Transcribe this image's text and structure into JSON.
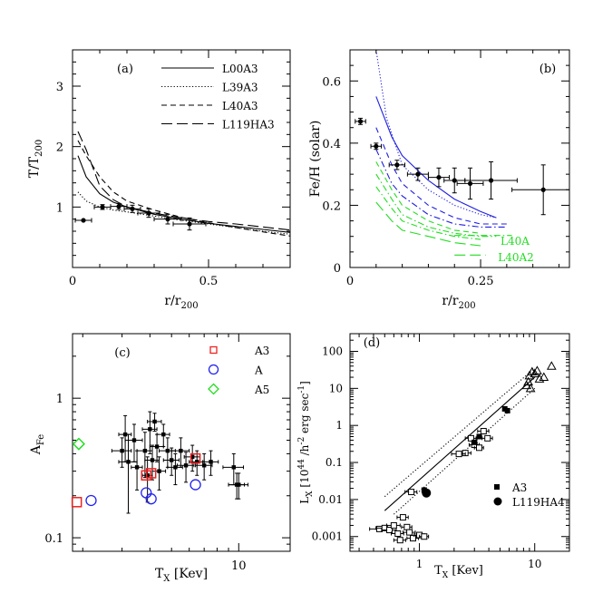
{
  "chart_data": [
    {
      "panel": "(a)",
      "type": "line",
      "xlabel": "r/r200",
      "ylabel": "T/T200",
      "xlim": [
        0,
        0.8
      ],
      "ylim": [
        0,
        3.6
      ],
      "xticks": [
        0,
        0.5
      ],
      "yticks": [
        1,
        2,
        3
      ],
      "legend_position": "top-right",
      "series": [
        {
          "name": "L00A3",
          "style": "solid",
          "x": [
            0.02,
            0.05,
            0.1,
            0.15,
            0.2,
            0.3,
            0.4,
            0.5,
            0.6,
            0.7,
            0.8
          ],
          "y": [
            1.85,
            1.5,
            1.22,
            1.08,
            1.0,
            0.88,
            0.8,
            0.73,
            0.68,
            0.63,
            0.58
          ]
        },
        {
          "name": "L39A3",
          "style": "dotted",
          "x": [
            0.02,
            0.05,
            0.1,
            0.15,
            0.2,
            0.3,
            0.4,
            0.5,
            0.6,
            0.7,
            0.8
          ],
          "y": [
            1.25,
            1.1,
            1.0,
            0.95,
            0.92,
            0.85,
            0.78,
            0.72,
            0.66,
            0.6,
            0.55
          ]
        },
        {
          "name": "L40A3",
          "style": "dashed",
          "x": [
            0.02,
            0.05,
            0.1,
            0.15,
            0.2,
            0.3,
            0.4,
            0.5,
            0.6,
            0.7,
            0.8
          ],
          "y": [
            2.1,
            1.85,
            1.5,
            1.25,
            1.1,
            0.95,
            0.83,
            0.74,
            0.66,
            0.59,
            0.52
          ]
        },
        {
          "name": "L119HA3",
          "style": "longdash",
          "x": [
            0.02,
            0.05,
            0.1,
            0.15,
            0.2,
            0.3,
            0.4,
            0.5,
            0.6,
            0.7,
            0.8
          ],
          "y": [
            2.25,
            1.95,
            1.35,
            1.12,
            1.0,
            0.9,
            0.82,
            0.76,
            0.72,
            0.67,
            0.62
          ]
        },
        {
          "name": "",
          "style": "points",
          "x": [
            0.04,
            0.11,
            0.17,
            0.22,
            0.28,
            0.35,
            0.43
          ],
          "y": [
            0.78,
            1.0,
            1.01,
            0.97,
            0.9,
            0.8,
            0.72
          ],
          "xerr": [
            0.03,
            0.03,
            0.03,
            0.03,
            0.04,
            0.05,
            0.06
          ],
          "yerr": [
            0,
            0.04,
            0.05,
            0.06,
            0.07,
            0.08,
            0.1
          ]
        }
      ]
    },
    {
      "panel": "(b)",
      "type": "line",
      "xlabel": "r/r200",
      "ylabel": "Fe/H (solar)",
      "xlim": [
        0,
        0.42
      ],
      "ylim": [
        0,
        0.7
      ],
      "xticks": [
        0,
        0.25
      ],
      "yticks": [
        0,
        0.2,
        0.4,
        0.6
      ],
      "annotations": [
        "L40A",
        "L40A2"
      ],
      "series": [
        {
          "name": "blue-solid",
          "color": "#1f1fe0",
          "style": "solid",
          "x": [
            0.05,
            0.08,
            0.1,
            0.15,
            0.2,
            0.25,
            0.28
          ],
          "y": [
            0.55,
            0.42,
            0.36,
            0.28,
            0.22,
            0.18,
            0.16
          ]
        },
        {
          "name": "blue-dotted",
          "color": "#1f1fe0",
          "style": "dotted",
          "x": [
            0.05,
            0.07,
            0.1,
            0.15,
            0.2,
            0.25,
            0.28
          ],
          "y": [
            0.7,
            0.48,
            0.33,
            0.25,
            0.2,
            0.17,
            0.16
          ]
        },
        {
          "name": "blue-dashed",
          "color": "#1f1fe0",
          "style": "dashed",
          "x": [
            0.05,
            0.08,
            0.1,
            0.15,
            0.2,
            0.25,
            0.3
          ],
          "y": [
            0.45,
            0.33,
            0.27,
            0.2,
            0.16,
            0.14,
            0.14
          ]
        },
        {
          "name": "blue-dashdot",
          "color": "#1f1fe0",
          "style": "dashdot",
          "x": [
            0.05,
            0.08,
            0.1,
            0.15,
            0.2,
            0.25,
            0.3
          ],
          "y": [
            0.38,
            0.27,
            0.23,
            0.17,
            0.14,
            0.13,
            0.13
          ]
        },
        {
          "name": "green-1",
          "color": "#22dd22",
          "style": "dashed",
          "x": [
            0.05,
            0.08,
            0.1,
            0.15,
            0.2,
            0.25
          ],
          "y": [
            0.34,
            0.25,
            0.2,
            0.15,
            0.12,
            0.11
          ]
        },
        {
          "name": "green-2",
          "color": "#22dd22",
          "style": "dashdot",
          "x": [
            0.05,
            0.08,
            0.1,
            0.15,
            0.2,
            0.25,
            0.28
          ],
          "y": [
            0.3,
            0.22,
            0.17,
            0.13,
            0.11,
            0.1,
            0.1
          ]
        },
        {
          "name": "green-3",
          "color": "#22dd22",
          "style": "dashdot",
          "x": [
            0.05,
            0.08,
            0.1,
            0.15,
            0.2,
            0.25
          ],
          "y": [
            0.26,
            0.19,
            0.15,
            0.12,
            0.1,
            0.09
          ]
        },
        {
          "name": "green-4",
          "color": "#22dd22",
          "style": "longdash",
          "x": [
            0.05,
            0.08,
            0.1,
            0.15,
            0.2,
            0.25
          ],
          "y": [
            0.21,
            0.15,
            0.12,
            0.1,
            0.08,
            0.07
          ]
        },
        {
          "name": "green-legend-1",
          "color": "#22dd22",
          "style": "dashdot",
          "x": [
            0.2,
            0.31
          ],
          "y": [
            0.103,
            0.103
          ]
        },
        {
          "name": "green-legend-2",
          "color": "#22dd22",
          "style": "longdash",
          "x": [
            0.2,
            0.26
          ],
          "y": [
            0.04,
            0.04
          ]
        },
        {
          "name": "",
          "style": "points",
          "x": [
            0.02,
            0.05,
            0.09,
            0.13,
            0.17,
            0.2,
            0.23,
            0.27,
            0.37
          ],
          "y": [
            0.47,
            0.39,
            0.33,
            0.3,
            0.29,
            0.28,
            0.27,
            0.28,
            0.25
          ],
          "xerr": [
            0.01,
            0.01,
            0.015,
            0.02,
            0.02,
            0.02,
            0.025,
            0.05,
            0.06
          ],
          "yerr": [
            0.01,
            0.01,
            0.015,
            0.02,
            0.03,
            0.04,
            0.05,
            0.06,
            0.08
          ]
        }
      ]
    },
    {
      "panel": "(c)",
      "type": "scatter",
      "xlabel": "TX [Kev]",
      "ylabel": "AFe",
      "xscale": "log",
      "yscale": "log",
      "xlim": [
        1.8,
        17
      ],
      "ylim": [
        0.08,
        2.9
      ],
      "xtick_labels": [
        10
      ],
      "ytick_labels": [
        0.1,
        1
      ],
      "legend_position": "top-right",
      "legend": [
        {
          "name": "A3",
          "marker": "square",
          "color": "#ee2222"
        },
        {
          "name": "A",
          "marker": "circle",
          "color": "#2222ee"
        },
        {
          "name": "A5",
          "marker": "diamond",
          "color": "#22dd22"
        }
      ],
      "series": [
        {
          "name": "observed",
          "marker": "filled-square",
          "color": "#000000",
          "x": [
            3.0,
            3.1,
            3.2,
            3.4,
            3.5,
            3.8,
            3.9,
            4.0,
            4.1,
            4.2,
            4.3,
            4.4,
            4.6,
            4.8,
            5.0,
            5.2,
            5.5,
            5.8,
            6.2,
            6.5,
            7.0,
            7.5,
            9.5,
            9.8,
            10.0
          ],
          "y": [
            0.42,
            0.55,
            0.35,
            0.5,
            0.32,
            0.42,
            0.28,
            0.6,
            0.36,
            0.68,
            0.45,
            0.3,
            0.55,
            0.42,
            0.36,
            0.32,
            0.42,
            0.33,
            0.38,
            0.35,
            0.33,
            0.35,
            0.32,
            0.24,
            0.24
          ],
          "xerr": [
            0.3,
            0.2,
            0.3,
            0.3,
            0.2,
            0.3,
            0.2,
            0.3,
            0.3,
            0.3,
            0.3,
            0.3,
            0.3,
            0.4,
            0.4,
            0.4,
            0.5,
            0.5,
            0.5,
            0.5,
            0.6,
            0.6,
            1.0,
            0.8,
            1.0
          ],
          "yerr": [
            0.1,
            0.2,
            0.2,
            0.15,
            0.1,
            0.15,
            0.1,
            0.2,
            0.1,
            0.1,
            0.1,
            0.08,
            0.1,
            0.1,
            0.08,
            0.08,
            0.1,
            0.08,
            0.08,
            0.07,
            0.07,
            0.07,
            0.08,
            0.05,
            0.05
          ]
        },
        {
          "name": "A3",
          "marker": "square",
          "color": "#ee2222",
          "x": [
            1.88,
            3.85,
            4.05,
            6.4
          ],
          "y": [
            0.18,
            0.28,
            0.29,
            0.37
          ]
        },
        {
          "name": "A",
          "marker": "circle",
          "color": "#2222ee",
          "x": [
            2.18,
            3.85,
            4.05,
            6.4
          ],
          "y": [
            0.185,
            0.21,
            0.19,
            0.24
          ]
        },
        {
          "name": "A5",
          "marker": "diamond",
          "color": "#22dd22",
          "x": [
            1.92
          ],
          "y": [
            0.47
          ]
        }
      ]
    },
    {
      "panel": "(d)",
      "type": "scatter",
      "xlabel": "TX [Kev]",
      "ylabel": "LX [10^44 /h^-2 erg sec^-1]",
      "xscale": "log",
      "yscale": "log",
      "xlim": [
        0.25,
        20
      ],
      "ylim": [
        0.0004,
        300
      ],
      "xtick_labels": [
        1,
        10
      ],
      "ytick_labels": [
        "0.001",
        "0.01",
        "0.1",
        "1",
        "10",
        "100"
      ],
      "legend_position": "bottom-right",
      "legend": [
        {
          "name": "A3",
          "marker": "filled-square"
        },
        {
          "name": "L119HA4",
          "marker": "filled-circle"
        }
      ],
      "series": [
        {
          "name": "fit",
          "style": "solid",
          "x": [
            0.5,
            10
          ],
          "y": [
            0.005,
            20
          ]
        },
        {
          "name": "fit-upper",
          "style": "dotted",
          "x": [
            0.5,
            10
          ],
          "y": [
            0.012,
            35
          ]
        },
        {
          "name": "fit-lower",
          "style": "dotted",
          "x": [
            0.6,
            10
          ],
          "y": [
            0.004,
            10
          ]
        },
        {
          "name": "open-squares",
          "marker": "open-square",
          "x": [
            0.45,
            0.5,
            0.55,
            0.6,
            0.65,
            0.68,
            0.72,
            0.78,
            0.82,
            0.88,
            1.0,
            1.1,
            2.8,
            3.0,
            3.3,
            3.6,
            3.9,
            2.5,
            2.2,
            0.85
          ],
          "y": [
            0.0016,
            0.0017,
            0.0015,
            0.002,
            0.0012,
            0.0008,
            0.0033,
            0.0018,
            0.0013,
            0.0009,
            0.0011,
            0.001,
            0.45,
            0.3,
            0.25,
            0.7,
            0.45,
            0.18,
            0.17,
            0.016
          ],
          "xerr": [
            0.08,
            0.08,
            0.08,
            0.08,
            0.08,
            0.08,
            0.08,
            0.08,
            0.1,
            0.1,
            0.1,
            0.1,
            0.3,
            0.3,
            0.3,
            0.4,
            0.4,
            0.3,
            0.3,
            0.1
          ]
        },
        {
          "name": "open-triangles",
          "marker": "open-triangle",
          "x": [
            8.5,
            8.8,
            9.0,
            9.5,
            10.0,
            10.5,
            11.0,
            12.0,
            14.0,
            9.2
          ],
          "y": [
            12,
            15,
            22,
            28,
            25,
            30,
            18,
            20,
            40,
            10
          ]
        },
        {
          "name": "A3",
          "marker": "filled-square",
          "x": [
            1.1,
            3.0,
            3.3,
            5.5,
            5.8
          ],
          "y": [
            0.018,
            0.35,
            0.5,
            2.8,
            2.5
          ]
        },
        {
          "name": "L119HA4",
          "marker": "filled-circle",
          "x": [
            1.15
          ],
          "y": [
            0.015
          ]
        }
      ]
    }
  ]
}
